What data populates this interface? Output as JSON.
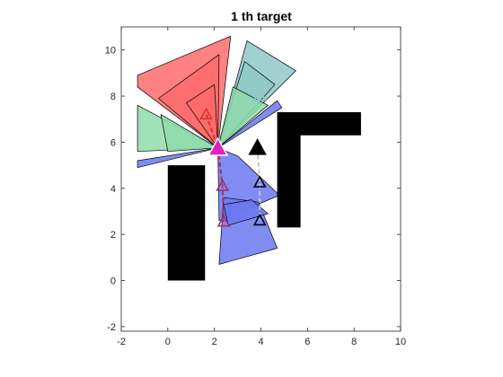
{
  "chart_data": {
    "type": "scatter",
    "title": "1 th target",
    "xlabel": "",
    "ylabel": "",
    "xlim": [
      -2,
      10
    ],
    "ylim": [
      -2.2,
      11
    ],
    "xticks": [
      -2,
      0,
      2,
      4,
      6,
      8,
      10
    ],
    "yticks": [
      -2,
      0,
      2,
      4,
      6,
      8,
      10
    ],
    "grid": false,
    "box": true,
    "colors": {
      "obstacle": "#000000",
      "wedge_red": "#ff6b6b",
      "wedge_green": "#8fdcac",
      "wedge_teal": "#8fc8c8",
      "wedge_blue": "#6b78f0",
      "agent": "#e020c0",
      "path_red": "#e03030",
      "path_purple": "#a03070",
      "path_gray": "#c8c8c8"
    },
    "obstacles": [
      {
        "name": "left-pillar",
        "polygon": [
          [
            0,
            0
          ],
          [
            1.6,
            0
          ],
          [
            1.6,
            5.0
          ],
          [
            0,
            5.0
          ]
        ]
      },
      {
        "name": "right-bracket",
        "polygon": [
          [
            4.7,
            2.3
          ],
          [
            5.7,
            2.3
          ],
          [
            5.7,
            6.3
          ],
          [
            8.3,
            6.3
          ],
          [
            8.3,
            7.3
          ],
          [
            4.7,
            7.3
          ]
        ]
      }
    ],
    "wedges": [
      {
        "name": "red-wedge-top",
        "color": "wedge_red",
        "polygon": [
          [
            2.15,
            5.75
          ],
          [
            -1.3,
            8.4
          ],
          [
            -1.3,
            8.9
          ],
          [
            2.7,
            10.6
          ]
        ]
      },
      {
        "name": "red-wedge-inner-1",
        "color": "wedge_red",
        "polygon": [
          [
            2.15,
            5.75
          ],
          [
            -0.4,
            7.9
          ],
          [
            2.2,
            9.8
          ]
        ]
      },
      {
        "name": "red-wedge-inner-2",
        "color": "wedge_red",
        "polygon": [
          [
            2.15,
            5.75
          ],
          [
            0.8,
            7.7
          ],
          [
            2.0,
            8.5
          ]
        ]
      },
      {
        "name": "green-wedge-left",
        "color": "wedge_green",
        "polygon": [
          [
            2.15,
            5.75
          ],
          [
            -1.3,
            7.6
          ],
          [
            -1.3,
            5.6
          ]
        ]
      },
      {
        "name": "green-wedge-left-inner",
        "color": "wedge_green",
        "polygon": [
          [
            2.15,
            5.75
          ],
          [
            -0.3,
            7.2
          ],
          [
            0.0,
            5.6
          ]
        ]
      },
      {
        "name": "teal-wedge-top-right",
        "color": "wedge_teal",
        "polygon": [
          [
            2.15,
            5.75
          ],
          [
            3.4,
            10.4
          ],
          [
            5.5,
            9.1
          ]
        ]
      },
      {
        "name": "teal-wedge-inner",
        "color": "wedge_teal",
        "polygon": [
          [
            2.15,
            5.75
          ],
          [
            3.3,
            9.5
          ],
          [
            4.6,
            8.5
          ]
        ]
      },
      {
        "name": "green-wedge-right",
        "color": "wedge_green",
        "polygon": [
          [
            2.15,
            5.75
          ],
          [
            2.8,
            8.4
          ],
          [
            4.3,
            7.6
          ]
        ]
      },
      {
        "name": "blue-sliver-right",
        "color": "wedge_blue",
        "polygon": [
          [
            2.15,
            5.75
          ],
          [
            4.7,
            7.8
          ],
          [
            4.9,
            7.5
          ]
        ]
      },
      {
        "name": "blue-sliver-left",
        "color": "wedge_blue",
        "polygon": [
          [
            2.15,
            5.75
          ],
          [
            -1.3,
            5.2
          ],
          [
            -1.3,
            4.9
          ]
        ]
      },
      {
        "name": "blue-wedge-lower",
        "color": "wedge_blue",
        "polygon": [
          [
            2.15,
            5.75
          ],
          [
            2.2,
            2.6
          ],
          [
            4.8,
            3.7
          ],
          [
            3.0,
            5.4
          ]
        ]
      },
      {
        "name": "blue-wedge-bottom",
        "color": "wedge_blue",
        "polygon": [
          [
            2.4,
            3.6
          ],
          [
            2.2,
            0.7
          ],
          [
            4.7,
            1.4
          ],
          [
            3.9,
            3.4
          ]
        ]
      },
      {
        "name": "blue-wedge-bottom-inner",
        "color": "wedge_blue",
        "polygon": [
          [
            2.4,
            3.3
          ],
          [
            2.6,
            2.4
          ],
          [
            4.3,
            2.9
          ],
          [
            3.6,
            3.5
          ]
        ]
      }
    ],
    "agent": {
      "x": 2.15,
      "y": 5.75
    },
    "target": {
      "x": 3.85,
      "y": 5.75
    },
    "markers": [
      {
        "name": "red-triangle",
        "x": 1.65,
        "y": 7.2,
        "color": "path_red"
      },
      {
        "name": "purple-triangle-1",
        "x": 2.35,
        "y": 4.1,
        "color": "path_purple"
      },
      {
        "name": "purple-triangle-2",
        "x": 2.4,
        "y": 2.55,
        "color": "path_purple"
      },
      {
        "name": "black-triangle-1",
        "x": 3.95,
        "y": 4.25,
        "color": "obstacle"
      },
      {
        "name": "black-triangle-2",
        "x": 3.95,
        "y": 2.6,
        "color": "obstacle"
      },
      {
        "name": "teal-triangle",
        "x": 3.95,
        "y": 8.0,
        "color": "wedge_teal"
      }
    ],
    "paths": [
      {
        "name": "red-path",
        "color": "path_red",
        "points": [
          [
            1.65,
            7.2
          ],
          [
            2.15,
            5.75
          ]
        ]
      },
      {
        "name": "purple-path",
        "color": "path_purple",
        "points": [
          [
            2.15,
            5.75
          ],
          [
            2.35,
            4.1
          ],
          [
            2.4,
            2.55
          ]
        ]
      },
      {
        "name": "gray-path",
        "color": "path_gray",
        "points": [
          [
            3.85,
            5.75
          ],
          [
            3.95,
            4.25
          ],
          [
            3.95,
            2.6
          ]
        ]
      }
    ]
  }
}
